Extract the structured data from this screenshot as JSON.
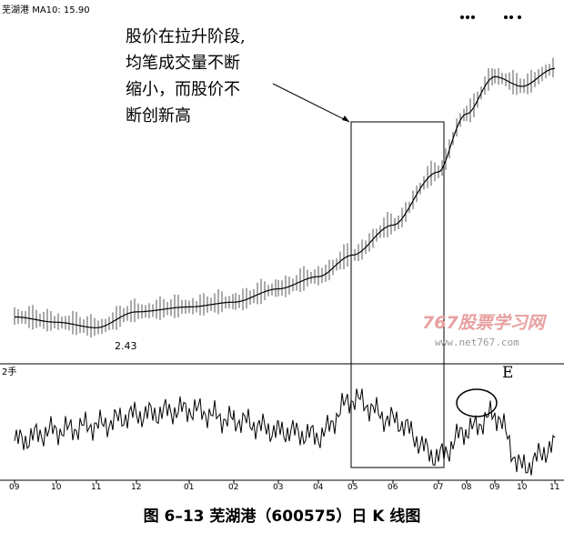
{
  "header": {
    "name": "芜湖港",
    "ma_label": "MA10: 15.90"
  },
  "annotation": {
    "callout_lines": [
      "股价在拉升阶段,",
      "均笔成交量不断",
      "缩小，而股价不",
      "断创新高"
    ],
    "low_price_label": "2.43",
    "volume_unit": "2手",
    "e_marker": "E"
  },
  "watermark": {
    "brand": "767股票学习网",
    "url": "www.net767.com"
  },
  "caption": "图 6–13   芜湖港（600575）日 K 线图",
  "colors": {
    "line": "#000000",
    "watermark": "#e8a0a0"
  },
  "chart_data": [
    {
      "type": "line",
      "title": "",
      "series": [
        {
          "name": "MA10",
          "x": [
            "09",
            "10",
            "11",
            "12",
            "01",
            "02",
            "03",
            "04",
            "05",
            "06",
            "07",
            "08",
            "09",
            "10",
            "11"
          ],
          "values": [
            2.7,
            2.6,
            2.5,
            2.8,
            2.9,
            3.0,
            3.3,
            3.6,
            4.2,
            5.2,
            7.6,
            11.5,
            15.0,
            14.0,
            15.9
          ]
        }
      ],
      "min_label": 2.43
    },
    {
      "type": "line",
      "title": "",
      "categories": [
        "09",
        "10",
        "11",
        "12",
        "01",
        "02",
        "03",
        "04",
        "05",
        "06",
        "07",
        "08",
        "09",
        "10",
        "11"
      ],
      "series": [
        {
          "name": "",
          "values": [
            35,
            45,
            50,
            60,
            65,
            55,
            45,
            40,
            75,
            55,
            20,
            45,
            60,
            10,
            30
          ]
        }
      ]
    }
  ]
}
